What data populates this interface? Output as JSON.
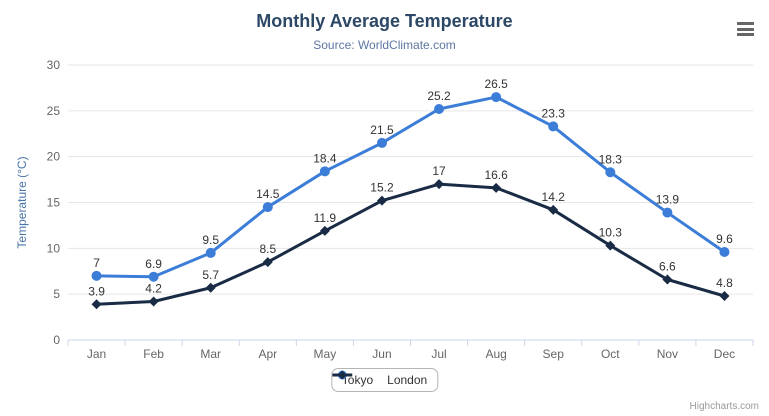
{
  "chart": {
    "title": "Monthly Average Temperature",
    "subtitle": "Source: WorldClimate.com",
    "credits": "Highcharts.com"
  },
  "chart_data": {
    "type": "line",
    "title": "Monthly Average Temperature",
    "subtitle": "Source: WorldClimate.com",
    "categories": [
      "Jan",
      "Feb",
      "Mar",
      "Apr",
      "May",
      "Jun",
      "Jul",
      "Aug",
      "Sep",
      "Oct",
      "Nov",
      "Dec"
    ],
    "series": [
      {
        "name": "Tokyo",
        "color": "#3c7dd8",
        "marker": "circle",
        "values": [
          7,
          6.9,
          9.5,
          14.5,
          18.4,
          21.5,
          25.2,
          26.5,
          23.3,
          18.3,
          13.9,
          9.6
        ]
      },
      {
        "name": "London",
        "color": "#1a2b45",
        "marker": "diamond",
        "values": [
          3.9,
          4.2,
          5.7,
          8.5,
          11.9,
          15.2,
          17,
          16.6,
          14.2,
          10.3,
          6.6,
          4.8
        ]
      }
    ],
    "xlabel": "",
    "ylabel": "Temperature (°C)",
    "ylim": [
      0,
      30
    ],
    "ytick_interval": 5,
    "grid": true,
    "legend_position": "bottom",
    "data_labels": true
  },
  "colors": {
    "title": "#2c4866",
    "subtitle": "#5d76a2",
    "grid_line": "#e6e6e6",
    "axis_line": "#ccd6eb",
    "axis_label": "#666666",
    "axis_title": "#4a75a8",
    "data_label": "#333333",
    "legend_text": "#333333",
    "credits": "#999999",
    "menu_icon": "#666666"
  }
}
